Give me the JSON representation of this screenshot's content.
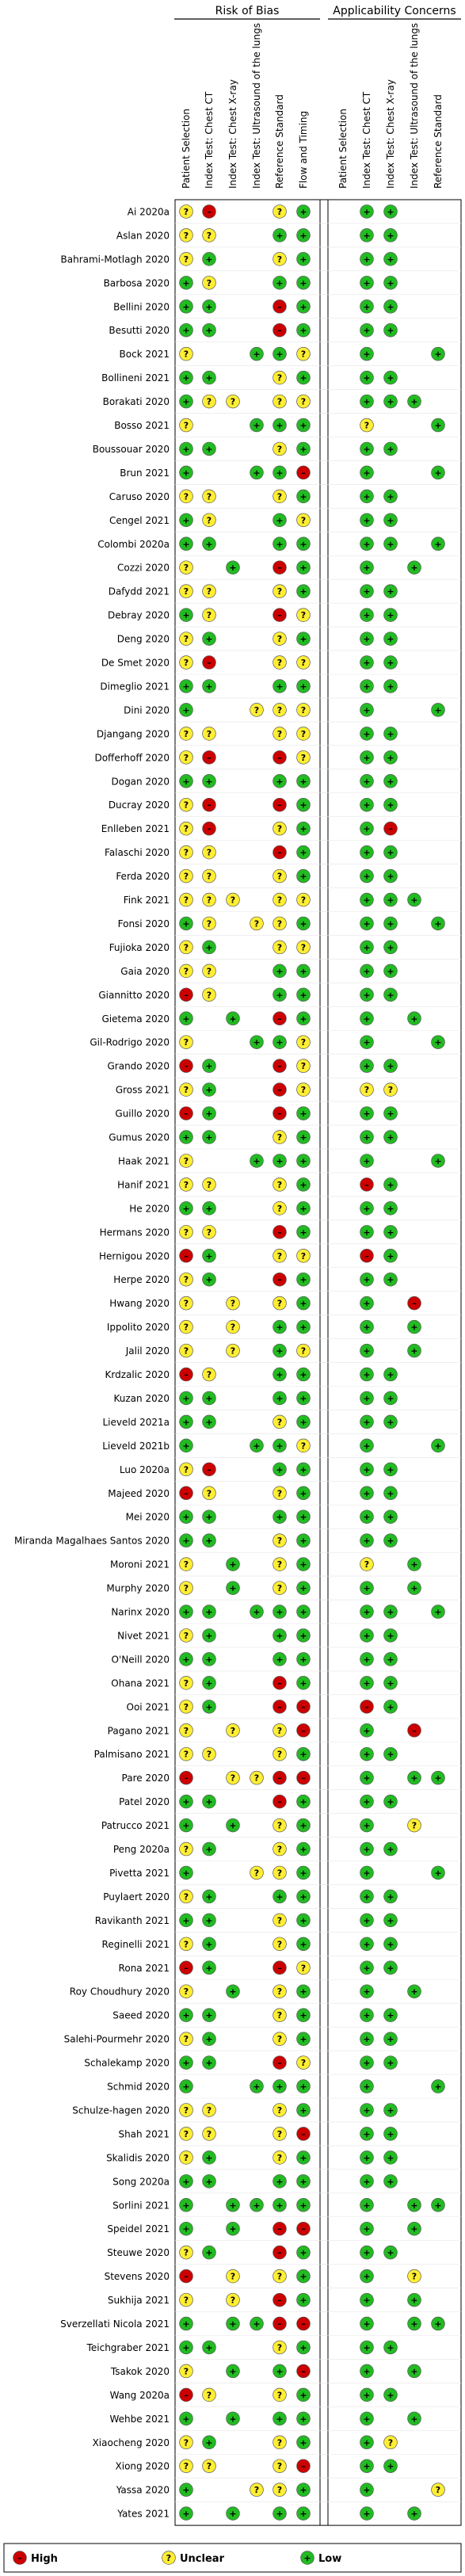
{
  "chart_data": {
    "type": "table",
    "group_headers": [
      "Risk of Bias",
      "Applicability Concerns"
    ],
    "columns": [
      "Patient Selection",
      "Index Test: Chest CT",
      "Index Test: Chest X-ray",
      "Index Test: Ultrasound of the lungs",
      "Reference Standard",
      "Flow and Timing",
      "Patient Selection",
      "Index Test: Chest CT",
      "Index Test: Chest X-ray",
      "Index Test: Ultrasound of the lungs",
      "Reference Standard"
    ],
    "column_groups": [
      0,
      0,
      0,
      0,
      0,
      0,
      1,
      1,
      1,
      1,
      1
    ],
    "legend": [
      {
        "key": "H",
        "label": "High",
        "symbol": "–",
        "color": "#cc0000"
      },
      {
        "key": "U",
        "label": "Unclear",
        "symbol": "?",
        "color": "#ffee33"
      },
      {
        "key": "L",
        "label": "Low",
        "symbol": "+",
        "color": "#22bb22"
      }
    ],
    "rows": [
      {
        "study": "Ai 2020a",
        "v": "UH--UL-LL--L"
      },
      {
        "study": "Aslan 2020",
        "v": "UU--LL-LL--L"
      },
      {
        "study": "Bahrami-Motlagh 2020",
        "v": "UL--UL-LL--U"
      },
      {
        "study": "Barbosa 2020",
        "v": "LU--LL-LL--L"
      },
      {
        "study": "Bellini 2020",
        "v": "LL--HL-LL--L"
      },
      {
        "study": "Besutti 2020",
        "v": "LL--HL-LL--L"
      },
      {
        "study": "Bock 2021",
        "v": "U--LLU-L--LL"
      },
      {
        "study": "Bollineni 2021",
        "v": "LL--UL-LL--L"
      },
      {
        "study": "Borakati 2020",
        "v": "LUU-UU-LLL-L"
      },
      {
        "study": "Bosso 2021",
        "v": "U--LLL-U--LL"
      },
      {
        "study": "Boussouar 2020",
        "v": "LL--UL-LL--L"
      },
      {
        "study": "Brun 2021",
        "v": "L--LLH-L--LL"
      },
      {
        "study": "Caruso 2020",
        "v": "UU--UL-LL--L"
      },
      {
        "study": "Cengel 2021",
        "v": "LU--LU-LL--L"
      },
      {
        "study": "Colombi 2020a",
        "v": "LL--LL-LL-LL"
      },
      {
        "study": "Cozzi 2020",
        "v": "U-L-HL-L-L-L"
      },
      {
        "study": "Dafydd 2021",
        "v": "UU--UL-LL--L"
      },
      {
        "study": "Debray 2020",
        "v": "LU--HU-LL--L"
      },
      {
        "study": "Deng 2020",
        "v": "UL--UL-LL--L"
      },
      {
        "study": "De Smet 2020",
        "v": "UH--UU-LL--L"
      },
      {
        "study": "Dimeglio 2021",
        "v": "LL--LL-LL--L"
      },
      {
        "study": "Dini 2020",
        "v": "L--UUU-L--LL"
      },
      {
        "study": "Djangang 2020",
        "v": "UU--UU-LL--L"
      },
      {
        "study": "Dofferhoff 2020",
        "v": "UH--HU-LL--L"
      },
      {
        "study": "Dogan 2020",
        "v": "LL--LL-LL--L"
      },
      {
        "study": "Ducray 2020",
        "v": "UH--HL-LL--L"
      },
      {
        "study": "Enlleben 2021",
        "v": "UH--UL-LH--L"
      },
      {
        "study": "Falaschi 2020",
        "v": "UU--HL-LL--L"
      },
      {
        "study": "Ferda 2020",
        "v": "UU--UL-LL--L"
      },
      {
        "study": "Fink 2021",
        "v": "UUU-UU-LLL-H"
      },
      {
        "study": "Fonsi 2020",
        "v": "LU-UUL-LL-LL"
      },
      {
        "study": "Fujioka 2020",
        "v": "UL--UU-LL--L"
      },
      {
        "study": "Gaia 2020",
        "v": "UU--LL-LL--L"
      },
      {
        "study": "Giannitto 2020",
        "v": "HU--LL-LL--L"
      },
      {
        "study": "Gietema 2020",
        "v": "L-L-HL-L-L-L"
      },
      {
        "study": "Gil-Rodrigo 2020",
        "v": "U--LLU-L--LL"
      },
      {
        "study": "Grando 2020",
        "v": "HL--HU-LL--L"
      },
      {
        "study": "Gross 2021",
        "v": "UL--HU-UU--L"
      },
      {
        "study": "Guillo 2020",
        "v": "HL--HL-LL--L"
      },
      {
        "study": "Gumus 2020",
        "v": "LL--UL-LL--L"
      },
      {
        "study": "Haak 2021",
        "v": "U--LLL-L--LL"
      },
      {
        "study": "Hanif 2021",
        "v": "UU--UL-HL--L"
      },
      {
        "study": "He 2020",
        "v": "LL--UL-LL--L"
      },
      {
        "study": "Hermans 2020",
        "v": "UU--HL-LL--L"
      },
      {
        "study": "Hernigou 2020",
        "v": "HL--UU-HL--L"
      },
      {
        "study": "Herpe 2020",
        "v": "UL--HL-LL--L"
      },
      {
        "study": "Hwang 2020",
        "v": "U-U-UL-L-H-L"
      },
      {
        "study": "Ippolito 2020",
        "v": "U-U-LL-L-L-L"
      },
      {
        "study": "Jalil 2020",
        "v": "U-U-LU-L-L-L"
      },
      {
        "study": "Krdzalic 2020",
        "v": "HU--LL-LL--L"
      },
      {
        "study": "Kuzan 2020",
        "v": "LL--LL-LL--L"
      },
      {
        "study": "Lieveld 2021a",
        "v": "LL--UL-LL--L"
      },
      {
        "study": "Lieveld 2021b",
        "v": "L--LLU-L--LL"
      },
      {
        "study": "Luo 2020a",
        "v": "UH--LL-LL--L"
      },
      {
        "study": "Majeed 2020",
        "v": "HU--UL-LL--L"
      },
      {
        "study": "Mei 2020",
        "v": "LL--LL-LL--L"
      },
      {
        "study": "Miranda Magalhaes Santos 2020",
        "v": "LL--UL-LL--L"
      },
      {
        "study": "Moroni 2021",
        "v": "U-L-UL-U-L-L"
      },
      {
        "study": "Murphy 2020",
        "v": "U-L-UL-L-L-L"
      },
      {
        "study": "Narinx 2020",
        "v": "LL-LLL-LL-LL"
      },
      {
        "study": "Nivet 2021",
        "v": "UL--LL-LL--L"
      },
      {
        "study": "O'Neill 2020",
        "v": "LL--LL-LL--L"
      },
      {
        "study": "Ohana 2021",
        "v": "UL--HL-LL--L"
      },
      {
        "study": "Ooi 2021",
        "v": "UL--HH-HL--L"
      },
      {
        "study": "Pagano 2021",
        "v": "U-U-UH-L-H-U"
      },
      {
        "study": "Palmisano 2021",
        "v": "UU--UL-LL--L"
      },
      {
        "study": "Pare 2020",
        "v": "H-UUHH-L-LL"
      },
      {
        "study": "Patel 2020",
        "v": "LL--HL-LL--L"
      },
      {
        "study": "Patrucco 2021",
        "v": "L-L-UL-L-U-L"
      },
      {
        "study": "Peng 2020a",
        "v": "UL--UL-LL--L"
      },
      {
        "study": "Pivetta 2021",
        "v": "L--UUL-L--LL"
      },
      {
        "study": "Puylaert 2020",
        "v": "UL--LL-LL--L"
      },
      {
        "study": "Ravikanth 2021",
        "v": "LL--UL-LL--L"
      },
      {
        "study": "Reginelli 2021",
        "v": "UL--UL-LL--L"
      },
      {
        "study": "Rona 2021",
        "v": "HL--HU-LL--L"
      },
      {
        "study": "Roy Choudhury 2020",
        "v": "U-L-UL-L-L-L"
      },
      {
        "study": "Saeed 2020",
        "v": "LL--UL-LL--L"
      },
      {
        "study": "Salehi-Pourmehr 2020",
        "v": "UL--UL-LL--L"
      },
      {
        "study": "Schalekamp 2020",
        "v": "LL--HU-LL--L"
      },
      {
        "study": "Schmid 2020",
        "v": "L--LLL-L--LL"
      },
      {
        "study": "Schulze-hagen 2020",
        "v": "UU--UL-LL--L"
      },
      {
        "study": "Shah 2021",
        "v": "UU--UH-LL--L"
      },
      {
        "study": "Skalidis 2020",
        "v": "UL--UL-LL--L"
      },
      {
        "study": "Song 2020a",
        "v": "LL--LL-LL--L"
      },
      {
        "study": "Sorlini 2021",
        "v": "L-LLLL-L-LL"
      },
      {
        "study": "Speidel 2021",
        "v": "L-L-HH-L-L-L"
      },
      {
        "study": "Steuwe 2020",
        "v": "UL--HL-LL--L"
      },
      {
        "study": "Stevens 2020",
        "v": "H-U-UL-L-U-L"
      },
      {
        "study": "Sukhija 2021",
        "v": "U-U-HL-L-L-L"
      },
      {
        "study": "Sverzellati Nicola 2021",
        "v": "L-LLHH-L-LL"
      },
      {
        "study": "Teichgraber 2021",
        "v": "LL--UL-LL--L"
      },
      {
        "study": "Tsakok 2020",
        "v": "U-L-LH-L-L-U"
      },
      {
        "study": "Wang 2020a",
        "v": "HU--UL-LL--L"
      },
      {
        "study": "Wehbe 2021",
        "v": "L-L-LL-L-L-L"
      },
      {
        "study": "Xiaocheng 2020",
        "v": "UL--UL-LU--L"
      },
      {
        "study": "Xiong 2020",
        "v": "UU--UH-LL--L"
      },
      {
        "study": "Yassa 2020",
        "v": "L--UUL-L--UL"
      },
      {
        "study": "Yates 2021",
        "v": "L-L-LL-L-L-L"
      }
    ]
  }
}
